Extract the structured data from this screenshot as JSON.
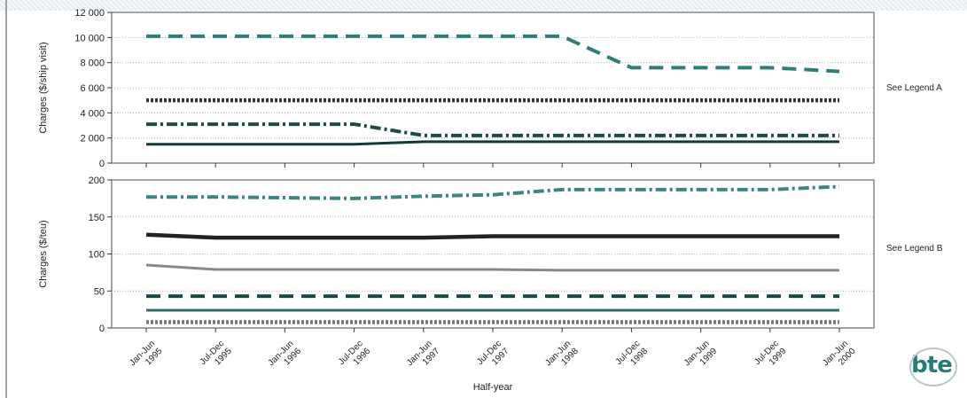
{
  "chart_data": [
    {
      "type": "line",
      "ylabel": "Charges ($/ship visit)",
      "ylim": [
        0,
        12000
      ],
      "yticks": [
        "0",
        "2 000",
        "4 000",
        "6 000",
        "8 000",
        "10 000",
        "12 000"
      ],
      "ytick_values": [
        0,
        2000,
        4000,
        6000,
        8000,
        10000,
        12000
      ],
      "side_label": "See Legend A",
      "grid": true,
      "series": [
        {
          "color": "#2f7d79",
          "style": "dash",
          "values": [
            10100,
            10100,
            10100,
            10100,
            10100,
            10100,
            10100,
            7600,
            7600,
            7600,
            7300
          ]
        },
        {
          "color": "#333333",
          "style": "dotted-thick",
          "values": [
            5000,
            5000,
            5000,
            5000,
            5000,
            5000,
            5000,
            5000,
            5000,
            5000,
            5000
          ]
        },
        {
          "color": "#1f4a48",
          "style": "dashdot",
          "values": [
            3100,
            3100,
            3100,
            3100,
            2200,
            2200,
            2200,
            2200,
            2200,
            2200,
            2200
          ]
        },
        {
          "color": "#123a38",
          "style": "solid",
          "values": [
            1500,
            1500,
            1500,
            1500,
            1700,
            1700,
            1700,
            1700,
            1700,
            1700,
            1700
          ]
        }
      ]
    },
    {
      "type": "line",
      "ylabel": "Charges ($/teu)",
      "xlabel": "Half-year",
      "ylim": [
        0,
        200
      ],
      "yticks": [
        "0",
        "50",
        "100",
        "150",
        "200"
      ],
      "ytick_values": [
        0,
        50,
        100,
        150,
        200
      ],
      "side_label": "See Legend B",
      "grid": true,
      "categories": [
        [
          "Jan-Jun",
          "1995"
        ],
        [
          "Jul-Dec",
          "1995"
        ],
        [
          "Jan-Jun",
          "1996"
        ],
        [
          "Jul-Dec",
          "1996"
        ],
        [
          "Jan-Jun",
          "1997"
        ],
        [
          "Jul-Dec",
          "1997"
        ],
        [
          "Jan-Jun",
          "1998"
        ],
        [
          "Jul-Dec",
          "1998"
        ],
        [
          "Jan-Jun",
          "1999"
        ],
        [
          "Jul-Dec",
          "1999"
        ],
        [
          "Jan-Jun",
          "2000"
        ]
      ],
      "series": [
        {
          "color": "#3b8683",
          "style": "dashdot",
          "values": [
            177,
            177,
            176,
            175,
            178,
            180,
            187,
            187,
            187,
            187,
            191
          ]
        },
        {
          "color": "#222222",
          "style": "solid-thick",
          "values": [
            126,
            122,
            122,
            122,
            122,
            124,
            124,
            124,
            124,
            124,
            124
          ]
        },
        {
          "color": "#888888",
          "style": "solid",
          "values": [
            85,
            79,
            79,
            79,
            79,
            79,
            78,
            78,
            78,
            78,
            78
          ]
        },
        {
          "color": "#1c4846",
          "style": "dash",
          "values": [
            43,
            43,
            43,
            43,
            43,
            43,
            43,
            43,
            43,
            43,
            43
          ]
        },
        {
          "color": "#2e6e6a",
          "style": "solid",
          "values": [
            24,
            24,
            24,
            24,
            24,
            24,
            24,
            24,
            24,
            24,
            24
          ]
        },
        {
          "color": "#777777",
          "style": "dotted-thick",
          "values": [
            8,
            8,
            8,
            8,
            8,
            8,
            8,
            8,
            8,
            8,
            8
          ]
        }
      ]
    }
  ],
  "logo": {
    "text": "bte"
  }
}
